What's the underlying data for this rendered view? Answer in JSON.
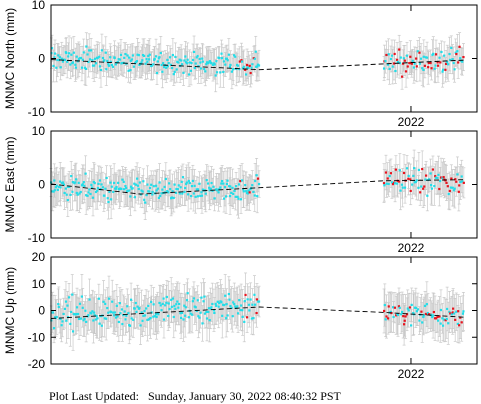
{
  "footer": {
    "label": "Plot Last Updated:",
    "timestamp": "Sunday, January 30, 2022 08:40:32 PST"
  },
  "colors": {
    "frame": "#000000",
    "errorbar": "#c8c8c8",
    "point": "#22dde8",
    "recent_point": "#e8141e",
    "model_line": "#000000"
  },
  "chart_data": [
    {
      "type": "scatter",
      "station": "MNMC",
      "component": "North",
      "ylabel": "MNMC North (mm)",
      "ylim": [
        -10,
        10
      ],
      "yticks": [
        -10,
        0,
        10
      ],
      "xtick_label": "2022",
      "error_bar_mm": 2.5,
      "grid": false,
      "segments": [
        {
          "x_range": [
            0.0,
            0.49
          ],
          "trend": [
            [
              0.0,
              -0.2
            ],
            [
              0.49,
              -2.1
            ]
          ],
          "mean": 0.2,
          "spread": 1.8,
          "n": 220
        },
        {
          "x_range": [
            0.78,
            0.97
          ],
          "trend": [
            [
              0.78,
              -1.0
            ],
            [
              0.97,
              -0.3
            ]
          ],
          "mean": -0.3,
          "spread": 2.0,
          "n": 80
        }
      ],
      "model_line": [
        [
          0.0,
          -0.2
        ],
        [
          0.49,
          -2.1
        ],
        [
          0.78,
          -1.0
        ],
        [
          0.97,
          -0.3
        ]
      ]
    },
    {
      "type": "scatter",
      "station": "MNMC",
      "component": "East",
      "ylabel": "MNMC East (mm)",
      "ylim": [
        -10,
        10
      ],
      "yticks": [
        -10,
        0,
        10
      ],
      "xtick_label": "2022",
      "error_bar_mm": 2.8,
      "grid": false,
      "segments": [
        {
          "x_range": [
            0.0,
            0.49
          ],
          "trend": [
            [
              0.0,
              0.1
            ],
            [
              0.21,
              -1.8
            ],
            [
              0.49,
              -0.6
            ]
          ],
          "mean": -0.6,
          "spread": 2.0,
          "n": 220
        },
        {
          "x_range": [
            0.78,
            0.97
          ],
          "trend": [
            [
              0.78,
              0.7
            ],
            [
              0.97,
              0.9
            ]
          ],
          "mean": 0.3,
          "spread": 2.2,
          "n": 80
        }
      ],
      "model_line": [
        [
          0.0,
          0.1
        ],
        [
          0.21,
          -1.8
        ],
        [
          0.49,
          -0.6
        ],
        [
          0.78,
          0.7
        ],
        [
          0.97,
          0.9
        ]
      ]
    },
    {
      "type": "scatter",
      "station": "MNMC",
      "component": "Up",
      "ylabel": "MNMC Up (mm)",
      "ylim": [
        -20,
        20
      ],
      "yticks": [
        -20,
        -10,
        0,
        10,
        20
      ],
      "xtick_label": "2022",
      "error_bar_mm": 6.5,
      "grid": false,
      "segments": [
        {
          "x_range": [
            0.0,
            0.49
          ],
          "trend": [
            [
              0.0,
              -3.0
            ],
            [
              0.49,
              1.3
            ]
          ],
          "mean": 1.5,
          "spread": 5.0,
          "n": 220
        },
        {
          "x_range": [
            0.78,
            0.97
          ],
          "trend": [
            [
              0.78,
              -0.7
            ],
            [
              0.97,
              -2.5
            ]
          ],
          "mean": -0.5,
          "spread": 4.0,
          "n": 80
        }
      ],
      "model_line": [
        [
          0.0,
          -3.0
        ],
        [
          0.49,
          1.3
        ],
        [
          0.78,
          -0.7
        ],
        [
          0.97,
          -2.5
        ]
      ]
    }
  ]
}
